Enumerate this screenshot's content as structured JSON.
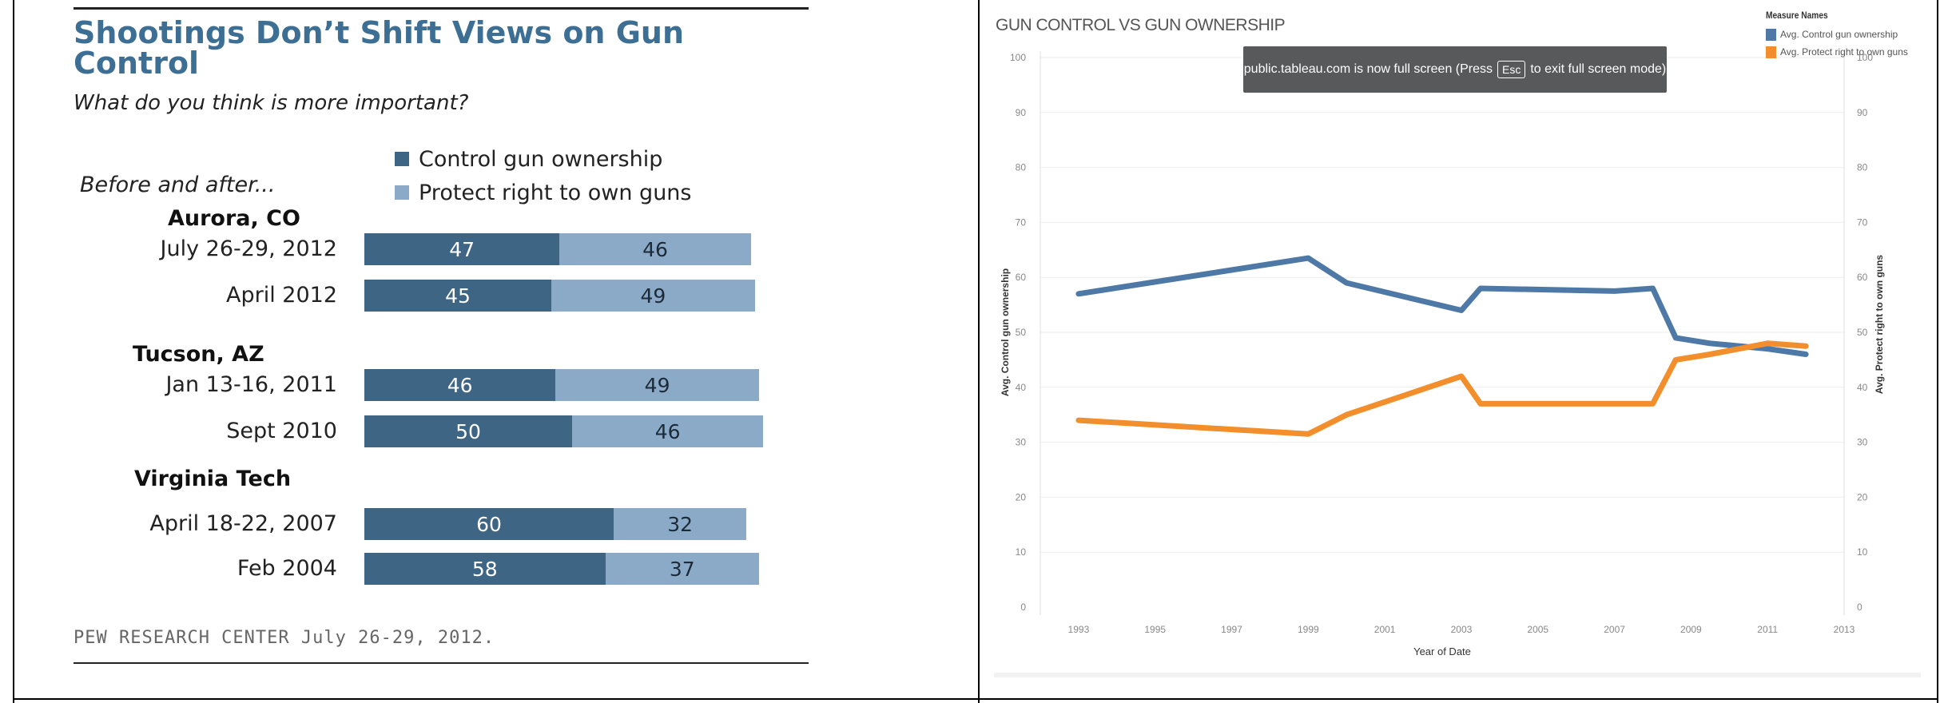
{
  "pew": {
    "title": "Shootings Don’t Shift Views on Gun Control",
    "subtitle": "What do you think is more important?",
    "intro": "Before and after...",
    "legend": {
      "control": "Control gun ownership",
      "protect": "Protect right to own guns"
    },
    "source": "PEW RESEARCH CENTER July 26-29, 2012."
  },
  "tableau": {
    "title": "GUN CONTROL VS GUN OWNERSHIP",
    "legend_title": "Measure Names",
    "legend_items": [
      "Avg. Control gun ownership",
      "Avg. Protect right to own guns"
    ],
    "banner_prefix": "public.tableau.com is now full screen (Press",
    "banner_key": "Esc",
    "banner_suffix": "to exit full screen mode)"
  },
  "chart_data": [
    {
      "type": "bar",
      "orientation": "horizontal",
      "stacked": true,
      "title": "Shootings Don’t Shift Views on Gun Control",
      "subtitle": "What do you think is more important?",
      "groups": [
        {
          "name": "Aurora, CO",
          "rows": [
            {
              "label": "July 26-29, 2012",
              "control": 47,
              "protect": 46
            },
            {
              "label": "April 2012",
              "control": 45,
              "protect": 49
            }
          ]
        },
        {
          "name": "Tucson, AZ",
          "rows": [
            {
              "label": "Jan 13-16, 2011",
              "control": 46,
              "protect": 49
            },
            {
              "label": "Sept 2010",
              "control": 50,
              "protect": 46
            }
          ]
        },
        {
          "name": "Virginia Tech",
          "rows": [
            {
              "label": "April 18-22, 2007",
              "control": 60,
              "protect": 32
            },
            {
              "label": "Feb 2004",
              "control": 58,
              "protect": 37
            }
          ]
        }
      ],
      "series": [
        {
          "name": "Control gun ownership",
          "color": "#3f6585"
        },
        {
          "name": "Protect right to own guns",
          "color": "#8aaac8"
        }
      ]
    },
    {
      "type": "line",
      "title": "GUN CONTROL VS GUN OWNERSHIP",
      "xlabel": "Year of Date",
      "ylabel_left": "Avg. Control gun ownership",
      "ylabel_right": "Avg. Protect right to own guns",
      "xlim": [
        1992,
        2013
      ],
      "ylim": [
        0,
        100
      ],
      "x_ticks": [
        1993,
        1995,
        1997,
        1999,
        2001,
        2003,
        2005,
        2007,
        2009,
        2011,
        2013
      ],
      "y_ticks": [
        0,
        10,
        20,
        30,
        40,
        50,
        60,
        70,
        80,
        90,
        100
      ],
      "grid": true,
      "legend_position": "top-right",
      "series": [
        {
          "name": "Avg. Control gun ownership",
          "color": "#4e79a7",
          "x": [
            1993.0,
            1999.0,
            2000.0,
            2003.0,
            2003.5,
            2007.0,
            2008.0,
            2008.6,
            2009.5,
            2011.0,
            2012.0
          ],
          "y": [
            57,
            63.5,
            59,
            54,
            58,
            57.5,
            58,
            49,
            48,
            47,
            46
          ]
        },
        {
          "name": "Avg. Protect right to own guns",
          "color": "#f28e2b",
          "x": [
            1993.0,
            1999.0,
            2000.0,
            2003.0,
            2003.5,
            2007.0,
            2008.0,
            2008.6,
            2009.5,
            2011.0,
            2012.0
          ],
          "y": [
            34,
            31.5,
            35,
            42,
            37,
            37,
            37,
            45,
            46,
            48,
            47.5
          ]
        }
      ]
    }
  ]
}
